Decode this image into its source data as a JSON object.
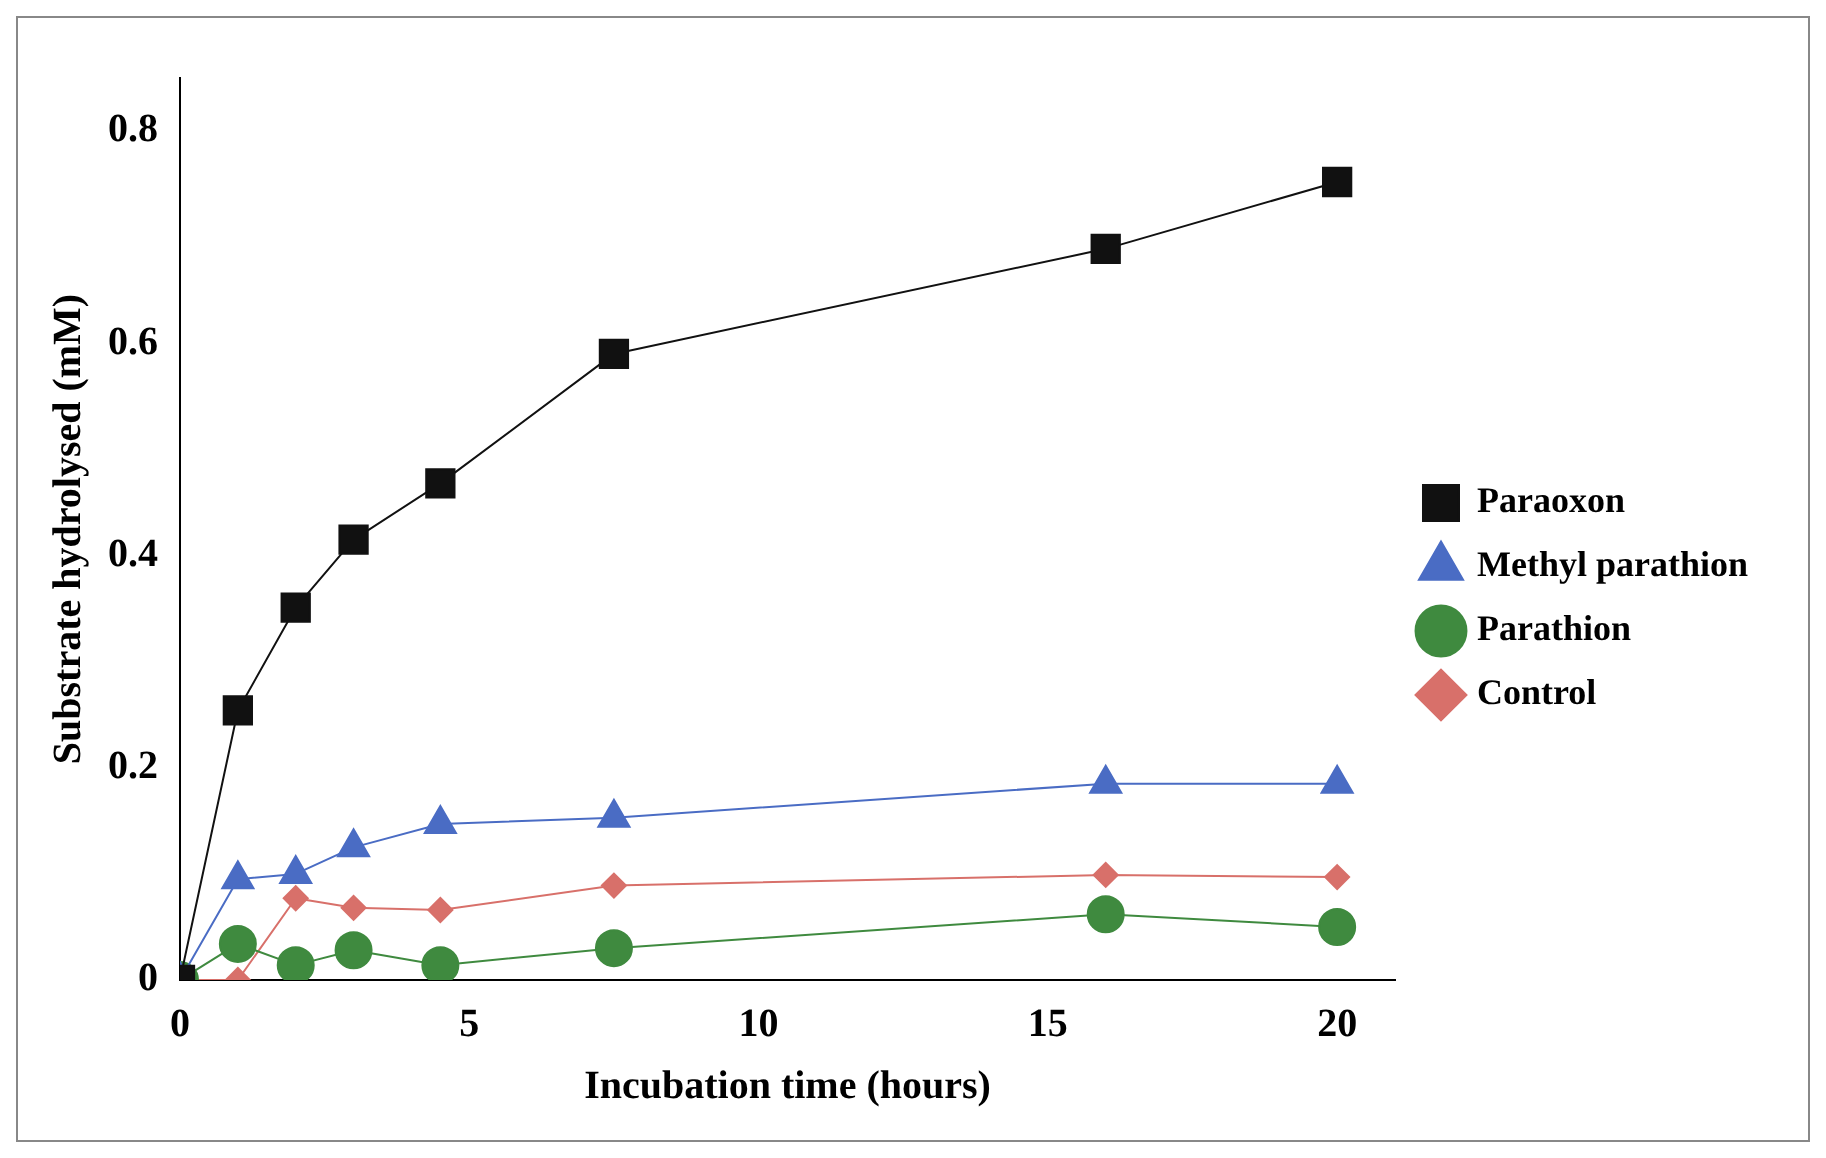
{
  "chart_data": {
    "type": "line",
    "xlabel": "Incubation time (hours)",
    "ylabel": "Substrate hydrolysed (mM)",
    "xlim": [
      0,
      21
    ],
    "xticks": [
      0,
      5,
      10,
      15,
      20
    ],
    "ylim": [
      0,
      0.85
    ],
    "yticks": [
      0,
      0.2,
      0.4,
      0.6,
      0.8
    ],
    "grid": false,
    "legend": "right",
    "x": [
      0,
      1,
      2,
      3,
      4.5,
      7.5,
      16,
      20
    ],
    "series": [
      {
        "name": "Paraoxon",
        "color": "#111111",
        "marker": "square",
        "values": [
          0,
          0.254,
          0.351,
          0.415,
          0.468,
          0.59,
          0.689,
          0.752
        ]
      },
      {
        "name": "Methyl parathion",
        "color": "#4a6cc4",
        "marker": "triangle",
        "values": [
          0,
          0.095,
          0.1,
          0.125,
          0.147,
          0.153,
          0.185,
          0.185
        ]
      },
      {
        "name": "Parathion",
        "color": "#3f8a3f",
        "marker": "circle",
        "values": [
          0,
          0.034,
          0.014,
          0.028,
          0.014,
          0.03,
          0.062,
          0.05
        ]
      },
      {
        "name": "Control",
        "color": "#d8706a",
        "marker": "diamond",
        "values": [
          0,
          0,
          0.077,
          0.068,
          0.066,
          0.089,
          0.099,
          0.097
        ]
      }
    ]
  }
}
